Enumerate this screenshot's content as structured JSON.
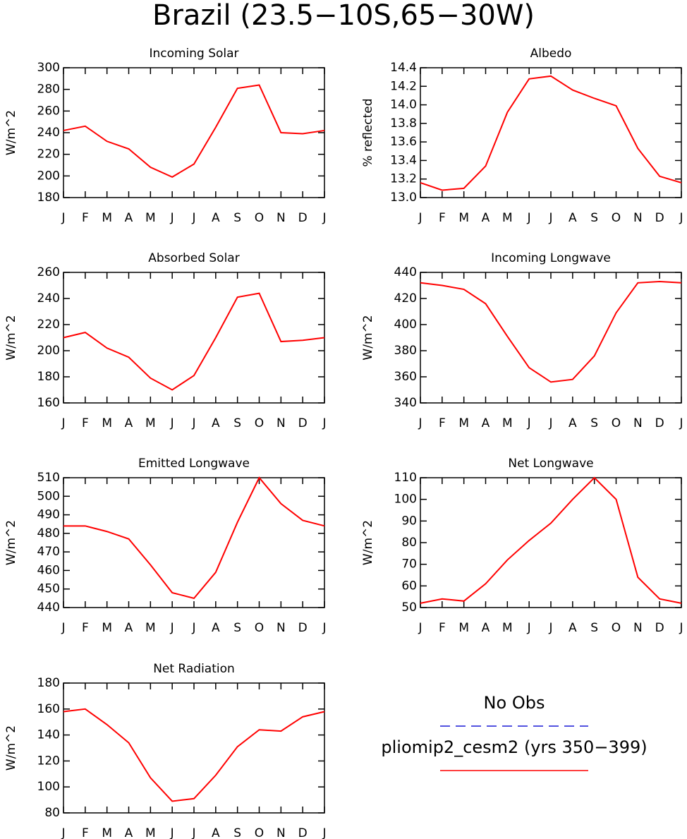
{
  "title": "Brazil (23.5−10S,65−30W)",
  "legend": [
    {
      "label": "No Obs",
      "color": "#1a1ad6",
      "dashed": true
    },
    {
      "label": "pliomip2_cesm2 (yrs 350−399)",
      "color": "#ff0000",
      "dashed": false
    }
  ],
  "chart_data": [
    {
      "type": "line",
      "title": "Incoming Solar",
      "ylabel": "W/m^2",
      "categories": [
        "J",
        "F",
        "M",
        "A",
        "M",
        "J",
        "J",
        "A",
        "S",
        "O",
        "N",
        "D",
        "J"
      ],
      "values": [
        242,
        246,
        232,
        225,
        208,
        199,
        211,
        245,
        281,
        284,
        240,
        239,
        242
      ],
      "color": "#ff0000",
      "ylim": [
        180,
        300
      ],
      "yticks": [
        180,
        200,
        220,
        240,
        260,
        280,
        300
      ]
    },
    {
      "type": "line",
      "title": "Albedo",
      "ylabel": "% reflected",
      "categories": [
        "J",
        "F",
        "M",
        "A",
        "M",
        "J",
        "J",
        "A",
        "S",
        "O",
        "N",
        "D",
        "J"
      ],
      "values": [
        13.16,
        13.08,
        13.1,
        13.34,
        13.92,
        14.28,
        14.31,
        14.16,
        14.07,
        13.99,
        13.53,
        13.23,
        13.16
      ],
      "color": "#ff0000",
      "ylim": [
        13.0,
        14.4
      ],
      "yticks": [
        {
          "value": 13,
          "label": "13.0"
        },
        13.2,
        13.4,
        13.6,
        13.8,
        {
          "value": 14,
          "label": "14.0"
        },
        14.2,
        14.4
      ]
    },
    {
      "type": "line",
      "title": "Absorbed Solar",
      "ylabel": "W/m^2",
      "categories": [
        "J",
        "F",
        "M",
        "A",
        "M",
        "J",
        "J",
        "A",
        "S",
        "O",
        "N",
        "D",
        "J"
      ],
      "values": [
        210,
        214,
        202,
        195,
        179,
        170,
        181,
        210,
        241,
        244,
        207,
        208,
        210
      ],
      "color": "#ff0000",
      "ylim": [
        160,
        260
      ],
      "yticks": [
        160,
        180,
        200,
        220,
        240,
        260
      ]
    },
    {
      "type": "line",
      "title": "Incoming Longwave",
      "ylabel": "W/m^2",
      "categories": [
        "J",
        "F",
        "M",
        "A",
        "M",
        "J",
        "J",
        "A",
        "S",
        "O",
        "N",
        "D",
        "J"
      ],
      "values": [
        432,
        430,
        427,
        416,
        391,
        367,
        356,
        358,
        376,
        409,
        432,
        433,
        432
      ],
      "color": "#ff0000",
      "ylim": [
        340,
        440
      ],
      "yticks": [
        340,
        360,
        380,
        400,
        420,
        440
      ]
    },
    {
      "type": "line",
      "title": "Emitted Longwave",
      "ylabel": "W/m^2",
      "categories": [
        "J",
        "F",
        "M",
        "A",
        "M",
        "J",
        "J",
        "A",
        "S",
        "O",
        "N",
        "D",
        "J"
      ],
      "values": [
        484,
        484,
        481,
        477,
        463,
        448,
        445,
        459,
        486,
        510,
        496,
        487,
        484
      ],
      "color": "#ff0000",
      "ylim": [
        440,
        510
      ],
      "yticks": [
        440,
        450,
        460,
        470,
        480,
        490,
        500,
        510
      ]
    },
    {
      "type": "line",
      "title": "Net Longwave",
      "ylabel": "W/m^2",
      "categories": [
        "J",
        "F",
        "M",
        "A",
        "M",
        "J",
        "J",
        "A",
        "S",
        "O",
        "N",
        "D",
        "J"
      ],
      "values": [
        52,
        54,
        53,
        61,
        72,
        81,
        89,
        100,
        110,
        100,
        64,
        54,
        52
      ],
      "color": "#ff0000",
      "ylim": [
        50,
        110
      ],
      "yticks": [
        50,
        60,
        70,
        80,
        90,
        100,
        110
      ]
    },
    {
      "type": "line",
      "title": "Net Radiation",
      "ylabel": "W/m^2",
      "categories": [
        "J",
        "F",
        "M",
        "A",
        "M",
        "J",
        "J",
        "A",
        "S",
        "O",
        "N",
        "D",
        "J"
      ],
      "values": [
        158,
        160,
        148,
        134,
        107,
        89,
        91,
        109,
        131,
        144,
        143,
        154,
        158
      ],
      "color": "#ff0000",
      "ylim": [
        80,
        180
      ],
      "yticks": [
        80,
        100,
        120,
        140,
        160,
        180
      ]
    }
  ]
}
